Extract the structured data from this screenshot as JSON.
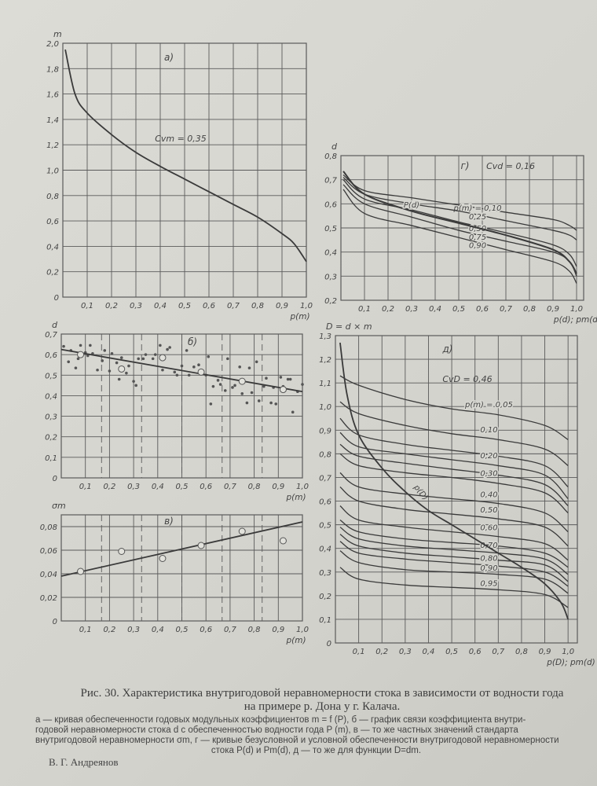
{
  "caption": {
    "title_line1": "Рис. 30. Характеристика внутригодовой неравномерности стока в зависимости от водности года",
    "title_line2": "на примере р. Дона у г. Калача.",
    "description_line1": "а — кривая обеспеченности годовых модульных коэффициентов m = f (P), б — график связи коэффициента внутри-",
    "description_line2": "годовой неравномерности стока d с обеспеченностью водности года P (m), в — то же частных значений стандарта",
    "description_line3": "внутригодовой неравномерности σm, г — кривые безусловной и условной обеспеченности внутригодовой неравномерности",
    "description_line4": "стока P(d) и Pm(d), д — то же для функции D=dm."
  },
  "author": "В. Г. Андреянов",
  "colors": {
    "ink": "#3a3a3a",
    "grid": "#5a5a5a",
    "paper": "#d8d8d2"
  },
  "chart_data": [
    {
      "id": "a",
      "type": "line",
      "panel_label": "а)",
      "ylabel": "m",
      "xlabel": "p(m)",
      "annotation": "Cvm = 0,35",
      "xlim": [
        0,
        1.0
      ],
      "ylim": [
        0,
        2.0
      ],
      "grid": true,
      "x_ticks": [
        "0,1",
        "0,2",
        "0,3",
        "0,4",
        "0,5",
        "0,6",
        "0,7",
        "0,8",
        "0,9",
        "1,0"
      ],
      "y_ticks": [
        "0",
        "0,2",
        "0,4",
        "0,6",
        "0,8",
        "1,0",
        "1,2",
        "1,4",
        "1,6",
        "1,8",
        "2,0"
      ],
      "series": [
        {
          "x": [
            0.01,
            0.05,
            0.1,
            0.2,
            0.3,
            0.4,
            0.5,
            0.6,
            0.7,
            0.8,
            0.9,
            0.95,
            1.0
          ],
          "y": [
            1.95,
            1.6,
            1.45,
            1.28,
            1.14,
            1.03,
            0.93,
            0.83,
            0.73,
            0.63,
            0.5,
            0.42,
            0.28
          ]
        }
      ]
    },
    {
      "id": "g",
      "type": "line",
      "panel_label": "г)",
      "ylabel": "d",
      "xlabel": "p(d); pm(d)",
      "annotation": "Cvd = 0,16",
      "xlim": [
        0,
        1.0
      ],
      "ylim": [
        0.2,
        0.8
      ],
      "grid": true,
      "x_ticks": [
        "0,1",
        "0,2",
        "0,3",
        "0,4",
        "0,5",
        "0,6",
        "0,7",
        "0,8",
        "0,9",
        "1,0"
      ],
      "y_ticks": [
        "0,2",
        "0,3",
        "0,4",
        "0,5",
        "0,6",
        "0,7",
        "0,8"
      ],
      "x": [
        0.01,
        0.1,
        0.3,
        0.5,
        0.7,
        0.9,
        0.97,
        1.0
      ],
      "series": [
        {
          "name": "p(m) = 0,10",
          "y": [
            0.72,
            0.655,
            0.625,
            0.595,
            0.565,
            0.535,
            0.51,
            0.49
          ]
        },
        {
          "name": "0,25",
          "y": [
            0.71,
            0.64,
            0.6,
            0.57,
            0.53,
            0.49,
            0.47,
            0.45
          ]
        },
        {
          "name": "0,50",
          "y": [
            0.7,
            0.62,
            0.575,
            0.525,
            0.48,
            0.43,
            0.39,
            0.34
          ]
        },
        {
          "name": "0,75",
          "y": [
            0.68,
            0.6,
            0.545,
            0.49,
            0.445,
            0.4,
            0.36,
            0.3
          ]
        },
        {
          "name": "0,90",
          "y": [
            0.66,
            0.56,
            0.51,
            0.46,
            0.41,
            0.36,
            0.32,
            0.27
          ]
        },
        {
          "name": "P(d)",
          "y": [
            0.735,
            0.64,
            0.57,
            0.52,
            0.47,
            0.41,
            0.36,
            0.31
          ],
          "bold": true
        }
      ]
    },
    {
      "id": "b",
      "type": "scatter",
      "panel_label": "б)",
      "ylabel": "d",
      "xlabel": "p(m)",
      "xlim": [
        0,
        1.0
      ],
      "ylim": [
        0,
        0.7
      ],
      "grid": true,
      "dashed_x": [
        0.167,
        0.333,
        0.5,
        0.667,
        0.833
      ],
      "x_ticks": [
        "0,1",
        "0,2",
        "0,3",
        "0,4",
        "0,5",
        "0,6",
        "0,7",
        "0,8",
        "0,9",
        "1,0"
      ],
      "y_ticks": [
        "0",
        "0,1",
        "0,2",
        "0,3",
        "0,4",
        "0,5",
        "0,6",
        "0,7"
      ],
      "points": [
        [
          0.01,
          0.64
        ],
        [
          0.03,
          0.565
        ],
        [
          0.04,
          0.62
        ],
        [
          0.06,
          0.535
        ],
        [
          0.07,
          0.58
        ],
        [
          0.08,
          0.645
        ],
        [
          0.1,
          0.61
        ],
        [
          0.11,
          0.595
        ],
        [
          0.12,
          0.645
        ],
        [
          0.13,
          0.605
        ],
        [
          0.15,
          0.525
        ],
        [
          0.17,
          0.57
        ],
        [
          0.18,
          0.62
        ],
        [
          0.2,
          0.52
        ],
        [
          0.21,
          0.605
        ],
        [
          0.23,
          0.56
        ],
        [
          0.24,
          0.48
        ],
        [
          0.25,
          0.585
        ],
        [
          0.27,
          0.51
        ],
        [
          0.28,
          0.545
        ],
        [
          0.3,
          0.47
        ],
        [
          0.31,
          0.45
        ],
        [
          0.32,
          0.58
        ],
        [
          0.34,
          0.58
        ],
        [
          0.35,
          0.6
        ],
        [
          0.38,
          0.58
        ],
        [
          0.39,
          0.6
        ],
        [
          0.41,
          0.645
        ],
        [
          0.42,
          0.525
        ],
        [
          0.44,
          0.625
        ],
        [
          0.45,
          0.635
        ],
        [
          0.47,
          0.515
        ],
        [
          0.48,
          0.5
        ],
        [
          0.5,
          0.545
        ],
        [
          0.52,
          0.62
        ],
        [
          0.53,
          0.5
        ],
        [
          0.55,
          0.54
        ],
        [
          0.57,
          0.55
        ],
        [
          0.6,
          0.5
        ],
        [
          0.61,
          0.59
        ],
        [
          0.62,
          0.36
        ],
        [
          0.63,
          0.445
        ],
        [
          0.65,
          0.475
        ],
        [
          0.66,
          0.455
        ],
        [
          0.68,
          0.425
        ],
        [
          0.69,
          0.58
        ],
        [
          0.71,
          0.44
        ],
        [
          0.72,
          0.45
        ],
        [
          0.74,
          0.54
        ],
        [
          0.75,
          0.41
        ],
        [
          0.77,
          0.365
        ],
        [
          0.78,
          0.535
        ],
        [
          0.79,
          0.415
        ],
        [
          0.81,
          0.565
        ],
        [
          0.82,
          0.375
        ],
        [
          0.84,
          0.445
        ],
        [
          0.85,
          0.485
        ],
        [
          0.87,
          0.365
        ],
        [
          0.88,
          0.44
        ],
        [
          0.89,
          0.36
        ],
        [
          0.91,
          0.49
        ],
        [
          0.92,
          0.445
        ],
        [
          0.94,
          0.48
        ],
        [
          0.95,
          0.48
        ],
        [
          0.96,
          0.32
        ],
        [
          0.98,
          0.42
        ],
        [
          1.0,
          0.455
        ]
      ],
      "mean_points": [
        [
          0.08,
          0.6
        ],
        [
          0.25,
          0.53
        ],
        [
          0.42,
          0.585
        ],
        [
          0.58,
          0.515
        ],
        [
          0.75,
          0.47
        ],
        [
          0.92,
          0.43
        ]
      ],
      "fit_line": {
        "x": [
          0,
          1.0
        ],
        "y": [
          0.625,
          0.42
        ]
      }
    },
    {
      "id": "v",
      "type": "scatter",
      "panel_label": "в)",
      "ylabel": "σm",
      "xlabel": "p(m)",
      "xlim": [
        0,
        1.0
      ],
      "ylim": [
        0,
        0.09
      ],
      "grid": true,
      "dashed_x": [
        0.167,
        0.333,
        0.5,
        0.667,
        0.833
      ],
      "x_ticks": [
        "0,1",
        "0,2",
        "0,3",
        "0,4",
        "0,5",
        "0,6",
        "0,7",
        "0,8",
        "0,9",
        "1,0"
      ],
      "y_ticks": [
        "0",
        "0,02",
        "0,04",
        "0,06",
        "0,08"
      ],
      "mean_points": [
        [
          0.08,
          0.042
        ],
        [
          0.25,
          0.059
        ],
        [
          0.42,
          0.053
        ],
        [
          0.58,
          0.064
        ],
        [
          0.75,
          0.076
        ],
        [
          0.92,
          0.068
        ]
      ],
      "fit_line": {
        "x": [
          0,
          1.0
        ],
        "y": [
          0.038,
          0.084
        ]
      }
    },
    {
      "id": "d",
      "type": "line",
      "panel_label": "д)",
      "ylabel": "D = d × m",
      "xlabel": "p(D); pm(d)",
      "annotation": "CvD = 0,46",
      "xlim": [
        0,
        1.0
      ],
      "ylim": [
        0,
        1.3
      ],
      "grid": true,
      "x_ticks": [
        "0,1",
        "0,2",
        "0,3",
        "0,4",
        "0,5",
        "0,6",
        "0,7",
        "0,8",
        "0,9",
        "1,0"
      ],
      "y_ticks": [
        "0",
        "0,1",
        "0,2",
        "0,3",
        "0,4",
        "0,5",
        "0,6",
        "0,7",
        "0,8",
        "0,9",
        "1,0",
        "1,1",
        "1,2",
        "1,3"
      ],
      "x": [
        0.02,
        0.1,
        0.3,
        0.5,
        0.7,
        0.9,
        1.0
      ],
      "series": [
        {
          "name": "p(m) = 0,05",
          "y": [
            1.13,
            1.09,
            1.03,
            0.99,
            0.965,
            0.92,
            0.86
          ]
        },
        {
          "name": "0,10",
          "y": [
            1.02,
            0.97,
            0.92,
            0.885,
            0.86,
            0.82,
            0.75
          ]
        },
        {
          "y": [
            0.95,
            0.88,
            0.84,
            0.815,
            0.79,
            0.75,
            0.66
          ]
        },
        {
          "name": "0,20",
          "y": [
            0.89,
            0.83,
            0.8,
            0.775,
            0.75,
            0.71,
            0.61
          ]
        },
        {
          "y": [
            0.84,
            0.79,
            0.76,
            0.735,
            0.71,
            0.67,
            0.58
          ]
        },
        {
          "name": "0,30",
          "y": [
            0.8,
            0.75,
            0.72,
            0.7,
            0.675,
            0.635,
            0.55
          ]
        },
        {
          "name": "0,40",
          "y": [
            0.72,
            0.66,
            0.63,
            0.61,
            0.59,
            0.55,
            0.47
          ]
        },
        {
          "name": "0,50",
          "y": [
            0.66,
            0.6,
            0.565,
            0.545,
            0.525,
            0.49,
            0.41
          ]
        },
        {
          "name": "0,60",
          "y": [
            0.58,
            0.52,
            0.49,
            0.47,
            0.45,
            0.42,
            0.35
          ]
        },
        {
          "y": [
            0.52,
            0.47,
            0.44,
            0.425,
            0.41,
            0.38,
            0.32
          ]
        },
        {
          "name": "0,70",
          "y": [
            0.49,
            0.44,
            0.41,
            0.395,
            0.38,
            0.355,
            0.29
          ]
        },
        {
          "y": [
            0.46,
            0.41,
            0.38,
            0.365,
            0.35,
            0.33,
            0.26
          ]
        },
        {
          "name": "0,80",
          "y": [
            0.43,
            0.38,
            0.355,
            0.34,
            0.325,
            0.3,
            0.24
          ]
        },
        {
          "name": "0,90",
          "y": [
            0.39,
            0.34,
            0.31,
            0.3,
            0.29,
            0.27,
            0.21
          ]
        },
        {
          "name": "0,95",
          "y": [
            0.32,
            0.27,
            0.245,
            0.235,
            0.225,
            0.205,
            0.15
          ]
        }
      ],
      "envelope": {
        "name": "p(D)",
        "x": [
          0.02,
          0.05,
          0.1,
          0.2,
          0.3,
          0.4,
          0.5,
          0.6,
          0.7,
          0.8,
          0.9,
          0.97,
          1.0
        ],
        "y": [
          1.27,
          1.05,
          0.88,
          0.74,
          0.64,
          0.56,
          0.5,
          0.44,
          0.38,
          0.32,
          0.25,
          0.17,
          0.1
        ]
      }
    }
  ]
}
